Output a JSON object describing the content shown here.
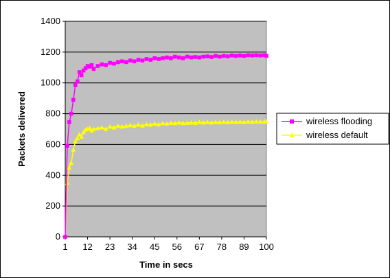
{
  "chart_data": {
    "type": "line",
    "xlabel": "Time in secs",
    "ylabel": "Packets delivered",
    "ylim": [
      0,
      1400
    ],
    "yticks": [
      0,
      200,
      400,
      600,
      800,
      1000,
      1200,
      1400
    ],
    "xlim": [
      1,
      100
    ],
    "xticks": [
      1,
      12,
      23,
      34,
      45,
      56,
      67,
      78,
      89,
      100
    ],
    "grid": "horizontal",
    "plot_background": "#c0c0c0",
    "legend_position": "right",
    "series": [
      {
        "name": "wireless flooding",
        "color": "#ff00ff",
        "marker": "square",
        "x": [
          1,
          2,
          3,
          4,
          5,
          6,
          7,
          8,
          9,
          10,
          11,
          12,
          13,
          14,
          15,
          17,
          19,
          21,
          23,
          25,
          27,
          29,
          31,
          33,
          35,
          37,
          39,
          41,
          43,
          45,
          47,
          49,
          51,
          53,
          55,
          57,
          59,
          61,
          63,
          65,
          67,
          69,
          71,
          73,
          75,
          77,
          79,
          81,
          83,
          85,
          87,
          89,
          91,
          93,
          95,
          97,
          99,
          100
        ],
        "values": [
          0,
          590,
          745,
          800,
          890,
          985,
          1010,
          1070,
          1050,
          1080,
          1095,
          1110,
          1105,
          1115,
          1090,
          1110,
          1120,
          1115,
          1130,
          1125,
          1135,
          1140,
          1135,
          1145,
          1140,
          1150,
          1145,
          1155,
          1150,
          1160,
          1155,
          1160,
          1165,
          1160,
          1170,
          1165,
          1160,
          1170,
          1165,
          1168,
          1165,
          1170,
          1172,
          1168,
          1175,
          1170,
          1175,
          1172,
          1178,
          1175,
          1178,
          1175,
          1180,
          1178,
          1180,
          1178,
          1180,
          1175
        ]
      },
      {
        "name": "wireless default",
        "color": "#ffff00",
        "marker": "triangle",
        "x": [
          1,
          2,
          3,
          4,
          5,
          6,
          7,
          8,
          9,
          10,
          11,
          12,
          13,
          14,
          15,
          17,
          19,
          21,
          23,
          25,
          27,
          29,
          31,
          33,
          35,
          37,
          39,
          41,
          43,
          45,
          47,
          49,
          51,
          53,
          55,
          57,
          59,
          61,
          63,
          65,
          67,
          69,
          71,
          73,
          75,
          77,
          79,
          81,
          83,
          85,
          87,
          89,
          91,
          93,
          95,
          97,
          99,
          100
        ],
        "values": [
          0,
          350,
          450,
          480,
          565,
          620,
          640,
          665,
          650,
          680,
          695,
          700,
          705,
          690,
          700,
          705,
          710,
          700,
          715,
          710,
          720,
          715,
          720,
          725,
          720,
          728,
          722,
          730,
          728,
          735,
          730,
          738,
          735,
          740,
          738,
          742,
          738,
          740,
          742,
          740,
          745,
          742,
          745,
          742,
          745,
          743,
          746,
          744,
          746,
          745,
          747,
          745,
          748,
          746,
          748,
          747,
          748,
          747
        ]
      }
    ]
  }
}
